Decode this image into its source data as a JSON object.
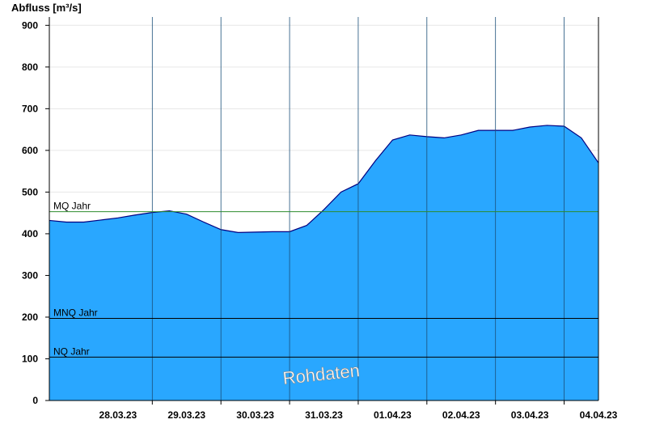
{
  "chart_data": {
    "type": "area",
    "ylabel": "Abfluss [m³/s]",
    "ylim": [
      0,
      920
    ],
    "yticks": [
      0,
      100,
      200,
      300,
      400,
      500,
      600,
      700,
      800,
      900
    ],
    "xlim": [
      "2023-03-27T12:00",
      "2023-04-04T12:00"
    ],
    "day_boundaries": [
      "28.03.23",
      "29.03.23",
      "30.03.23",
      "31.03.23",
      "01.04.23",
      "02.04.23",
      "03.04.23",
      "04.04.23"
    ],
    "xtick_labels": [
      "28.03.23",
      "29.03.23",
      "30.03.23",
      "31.03.23",
      "01.04.23",
      "02.04.23",
      "03.04.23",
      "04.04.23"
    ],
    "grid": true,
    "fill_color": "#29a7ff",
    "line_color": "#000080",
    "series": [
      {
        "values": [
          [
            "2023-03-27T12:00",
            432
          ],
          [
            "2023-03-27T18:00",
            428
          ],
          [
            "2023-03-28T00:00",
            428
          ],
          [
            "2023-03-28T06:00",
            433
          ],
          [
            "2023-03-28T12:00",
            438
          ],
          [
            "2023-03-28T18:00",
            445
          ],
          [
            "2023-03-29T00:00",
            451
          ],
          [
            "2023-03-29T06:00",
            455
          ],
          [
            "2023-03-29T12:00",
            447
          ],
          [
            "2023-03-29T18:00",
            428
          ],
          [
            "2023-03-30T00:00",
            410
          ],
          [
            "2023-03-30T06:00",
            403
          ],
          [
            "2023-03-30T12:00",
            404
          ],
          [
            "2023-03-30T18:00",
            405
          ],
          [
            "2023-03-31T00:00",
            405
          ],
          [
            "2023-03-31T06:00",
            420
          ],
          [
            "2023-03-31T12:00",
            458
          ],
          [
            "2023-03-31T18:00",
            500
          ],
          [
            "2023-04-01T00:00",
            520
          ],
          [
            "2023-04-01T06:00",
            575
          ],
          [
            "2023-04-01T12:00",
            625
          ],
          [
            "2023-04-01T18:00",
            637
          ],
          [
            "2023-04-02T00:00",
            633
          ],
          [
            "2023-04-02T06:00",
            630
          ],
          [
            "2023-04-02T12:00",
            637
          ],
          [
            "2023-04-02T18:00",
            648
          ],
          [
            "2023-04-03T00:00",
            648
          ],
          [
            "2023-04-03T06:00",
            648
          ],
          [
            "2023-04-03T12:00",
            656
          ],
          [
            "2023-04-03T18:00",
            660
          ],
          [
            "2023-04-04T00:00",
            658
          ],
          [
            "2023-04-04T06:00",
            630
          ],
          [
            "2023-04-04T12:00",
            570
          ]
        ]
      }
    ],
    "reference_lines": [
      {
        "label": "MQ Jahr",
        "value": 453,
        "color": "#2e8b2e"
      },
      {
        "label": "MNQ Jahr",
        "value": 197,
        "color": "#000000"
      },
      {
        "label": "NQ Jahr",
        "value": 104,
        "color": "#000000"
      }
    ],
    "annotation": "Rohdaten"
  }
}
